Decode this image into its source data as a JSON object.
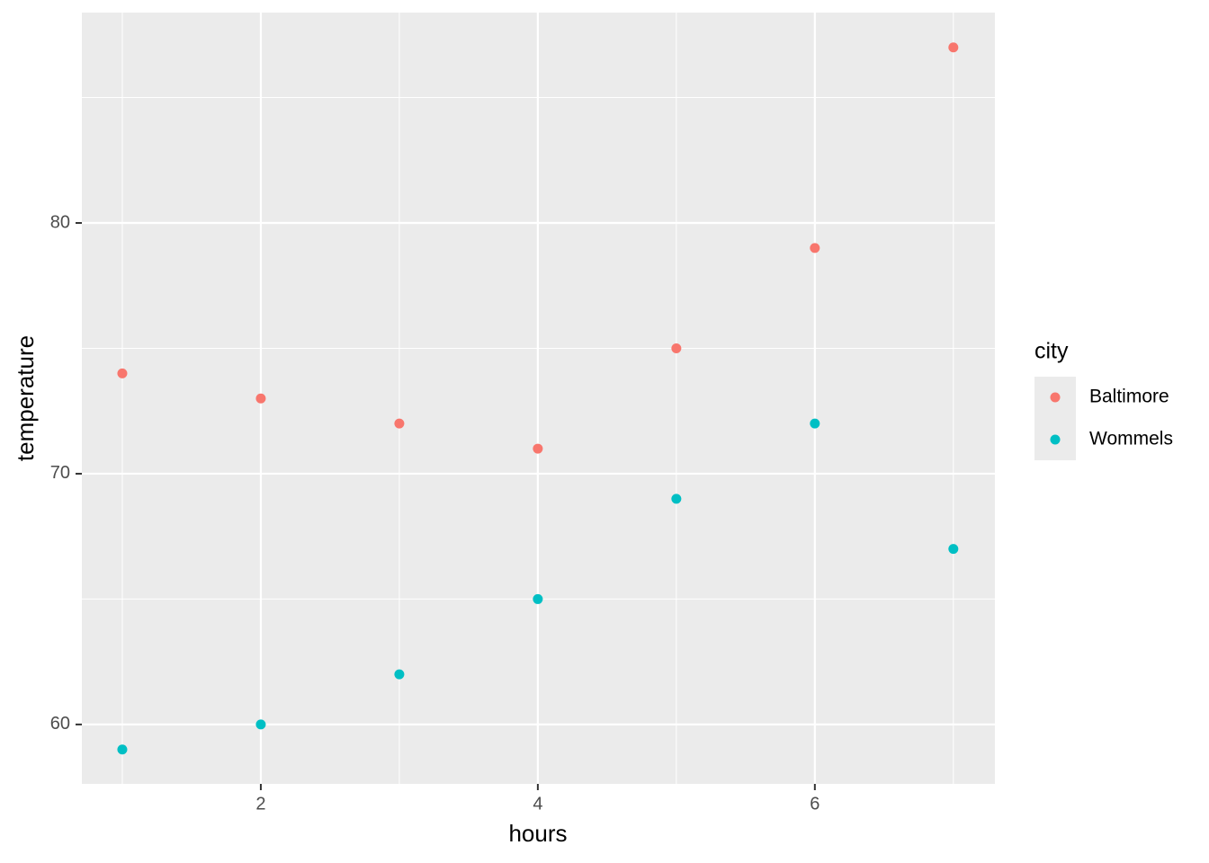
{
  "chart_data": {
    "type": "scatter",
    "x_label": "hours",
    "y_label": "temperature",
    "legend_title": "city",
    "legend_position": "right",
    "series": [
      {
        "name": "Baltimore",
        "color": "#F8766D",
        "x": [
          1,
          2,
          3,
          4,
          5,
          6,
          7
        ],
        "values": [
          74,
          73,
          72,
          71,
          75,
          79,
          87
        ]
      },
      {
        "name": "Wommels",
        "color": "#00BFC4",
        "x": [
          1,
          2,
          3,
          4,
          5,
          6,
          7
        ],
        "values": [
          59,
          60,
          62,
          65,
          69,
          72,
          67
        ]
      }
    ],
    "xlim": [
      0.708,
      7.3
    ],
    "ylim": [
      57.63,
      88.39
    ],
    "xticks": [
      2,
      4,
      6
    ],
    "yticks": [
      60,
      70,
      80
    ],
    "x_minor_grid": [
      1,
      3,
      5,
      7
    ],
    "y_minor_grid": [
      65,
      75,
      85
    ],
    "grid": true
  }
}
